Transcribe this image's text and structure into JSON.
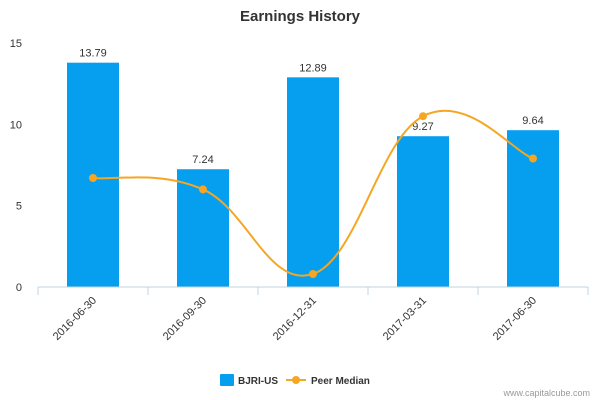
{
  "chart_data": {
    "type": "bar",
    "title": "Earnings History",
    "categories": [
      "2016-06-30",
      "2016-09-30",
      "2016-12-31",
      "2017-03-31",
      "2017-06-30"
    ],
    "series": [
      {
        "name": "BJRI-US",
        "type": "bar",
        "color": "#069fef",
        "values": [
          13.79,
          7.24,
          12.89,
          9.27,
          9.64
        ],
        "labels": [
          "13.79",
          "7.24",
          "12.89",
          "9.27",
          "9.64"
        ]
      },
      {
        "name": "Peer Median",
        "type": "line",
        "color": "#f5a623",
        "values": [
          6.7,
          6.0,
          0.8,
          10.5,
          7.9
        ]
      }
    ],
    "ylim": [
      0,
      15
    ],
    "yticks": [
      0,
      5,
      10,
      15
    ],
    "grid": false,
    "legend": "bottom"
  },
  "credit": "www.capitalcube.com"
}
